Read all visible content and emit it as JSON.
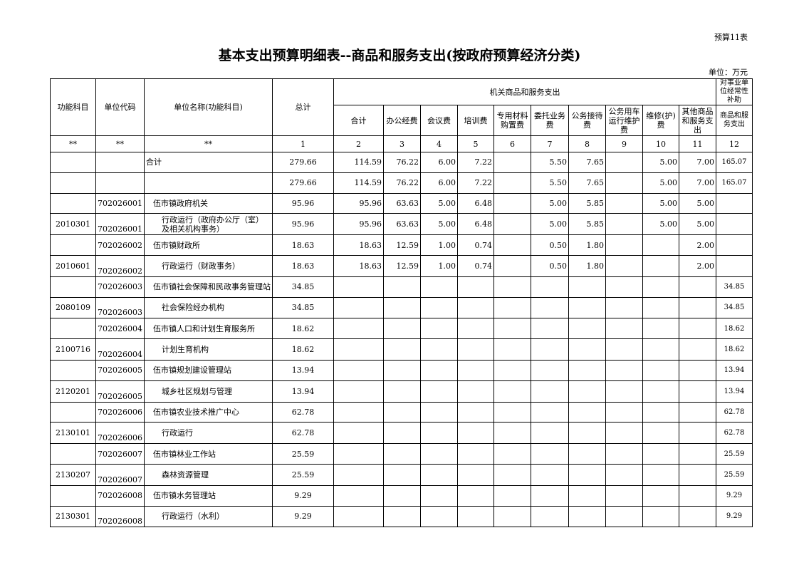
{
  "doc": {
    "tag": "预算11表",
    "title": "基本支出预算明细表--商品和服务支出(按政府预算经济分类)",
    "unit": "单位：万元"
  },
  "headers": {
    "func": "功能科目",
    "code": "单位代码",
    "name": "单位名称(功能科目)",
    "total": "总计",
    "group1": "机关商品和服务支出",
    "group2": "对事业单位经常性补助",
    "cols": [
      "合计",
      "办公经费",
      "会议费",
      "培训费",
      "专用材料购置费",
      "委托业务费",
      "公务接待费",
      "公务用车运行维护费",
      "维修(护)费",
      "其他商品和服务支出",
      "商品和服务支出"
    ],
    "index": [
      "**",
      "**",
      "**",
      "1",
      "2",
      "3",
      "4",
      "5",
      "6",
      "7",
      "8",
      "9",
      "10",
      "11",
      "12"
    ]
  },
  "rows": [
    {
      "type": "sum",
      "func": "",
      "code": "",
      "name": "合计",
      "v": [
        "279.66",
        "114.59",
        "76.22",
        "6.00",
        "7.22",
        "",
        "5.50",
        "7.65",
        "",
        "5.00",
        "7.00",
        "165.07"
      ]
    },
    {
      "type": "sum",
      "func": "",
      "code": "",
      "name": "",
      "v": [
        "279.66",
        "114.59",
        "76.22",
        "6.00",
        "7.22",
        "",
        "5.50",
        "7.65",
        "",
        "5.00",
        "7.00",
        "165.07"
      ]
    },
    {
      "type": "unit",
      "func": "",
      "code": "702026001",
      "name": "伍市镇政府机关",
      "v": [
        "95.96",
        "95.96",
        "63.63",
        "5.00",
        "6.48",
        "",
        "5.00",
        "5.85",
        "",
        "5.00",
        "5.00",
        ""
      ]
    },
    {
      "type": "func",
      "func": "2010301",
      "code": "702026001",
      "name": "行政运行（政府办公厅（室）及相关机构事务）",
      "v": [
        "95.96",
        "95.96",
        "63.63",
        "5.00",
        "6.48",
        "",
        "5.00",
        "5.85",
        "",
        "5.00",
        "5.00",
        ""
      ]
    },
    {
      "type": "unit",
      "func": "",
      "code": "702026002",
      "name": "伍市镇财政所",
      "v": [
        "18.63",
        "18.63",
        "12.59",
        "1.00",
        "0.74",
        "",
        "0.50",
        "1.80",
        "",
        "",
        "2.00",
        ""
      ]
    },
    {
      "type": "func",
      "func": "2010601",
      "code": "702026002",
      "name": "行政运行（财政事务）",
      "v": [
        "18.63",
        "18.63",
        "12.59",
        "1.00",
        "0.74",
        "",
        "0.50",
        "1.80",
        "",
        "",
        "2.00",
        ""
      ]
    },
    {
      "type": "unit",
      "func": "",
      "code": "702026003",
      "name": "伍市镇社会保障和民政事务管理站",
      "v": [
        "34.85",
        "",
        "",
        "",
        "",
        "",
        "",
        "",
        "",
        "",
        "",
        "34.85"
      ]
    },
    {
      "type": "func",
      "func": "2080109",
      "code": "702026003",
      "name": "社会保险经办机构",
      "v": [
        "34.85",
        "",
        "",
        "",
        "",
        "",
        "",
        "",
        "",
        "",
        "",
        "34.85"
      ]
    },
    {
      "type": "unit",
      "func": "",
      "code": "702026004",
      "name": "伍市镇人口和计划生育服务所",
      "v": [
        "18.62",
        "",
        "",
        "",
        "",
        "",
        "",
        "",
        "",
        "",
        "",
        "18.62"
      ]
    },
    {
      "type": "func",
      "func": "2100716",
      "code": "702026004",
      "name": "计划生育机构",
      "v": [
        "18.62",
        "",
        "",
        "",
        "",
        "",
        "",
        "",
        "",
        "",
        "",
        "18.62"
      ]
    },
    {
      "type": "unit",
      "func": "",
      "code": "702026005",
      "name": "伍市镇规划建设管理站",
      "v": [
        "13.94",
        "",
        "",
        "",
        "",
        "",
        "",
        "",
        "",
        "",
        "",
        "13.94"
      ]
    },
    {
      "type": "func",
      "func": "2120201",
      "code": "702026005",
      "name": "城乡社区规划与管理",
      "v": [
        "13.94",
        "",
        "",
        "",
        "",
        "",
        "",
        "",
        "",
        "",
        "",
        "13.94"
      ]
    },
    {
      "type": "unit",
      "func": "",
      "code": "702026006",
      "name": "伍市镇农业技术推广中心",
      "v": [
        "62.78",
        "",
        "",
        "",
        "",
        "",
        "",
        "",
        "",
        "",
        "",
        "62.78"
      ]
    },
    {
      "type": "func",
      "func": "2130101",
      "code": "702026006",
      "name": "行政运行",
      "v": [
        "62.78",
        "",
        "",
        "",
        "",
        "",
        "",
        "",
        "",
        "",
        "",
        "62.78"
      ]
    },
    {
      "type": "unit",
      "func": "",
      "code": "702026007",
      "name": "伍市镇林业工作站",
      "v": [
        "25.59",
        "",
        "",
        "",
        "",
        "",
        "",
        "",
        "",
        "",
        "",
        "25.59"
      ]
    },
    {
      "type": "func",
      "func": "2130207",
      "code": "702026007",
      "name": "森林资源管理",
      "v": [
        "25.59",
        "",
        "",
        "",
        "",
        "",
        "",
        "",
        "",
        "",
        "",
        "25.59"
      ]
    },
    {
      "type": "unit",
      "func": "",
      "code": "702026008",
      "name": "伍市镇水务管理站",
      "v": [
        "9.29",
        "",
        "",
        "",
        "",
        "",
        "",
        "",
        "",
        "",
        "",
        "9.29"
      ]
    },
    {
      "type": "func",
      "func": "2130301",
      "code": "702026008",
      "name": "行政运行（水利）",
      "v": [
        "9.29",
        "",
        "",
        "",
        "",
        "",
        "",
        "",
        "",
        "",
        "",
        "9.29"
      ]
    }
  ]
}
